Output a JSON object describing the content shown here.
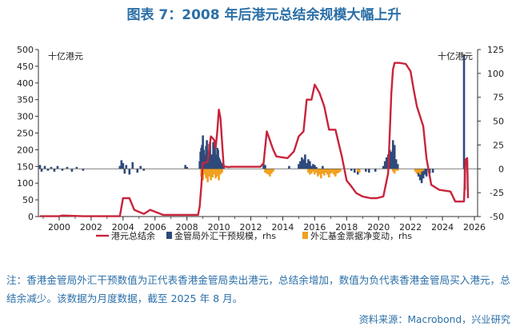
{
  "figure": {
    "title": "图表 7：2008 年后港元总结余规模大幅上升",
    "note": "注：香港金管局外汇干预数值为正代表香港金管局卖出港元，总结余增加，数值为负代表香港金管局买入港元，总结余减少。该数据为月度数据，截至 2025 年 8 月。",
    "source": "资料来源：Macrobond，兴业研究",
    "colors": {
      "title": "#2b6fa8",
      "balance": "#c8243c",
      "intervention": "#2e4a7a",
      "exchange_fund": "#f0a020",
      "axis": "#333333"
    }
  },
  "chart_data": {
    "type": "line",
    "left_axis": {
      "unit_label": "十亿港元",
      "ticks": [
        0,
        50,
        100,
        150,
        200,
        250,
        300,
        350,
        400,
        450,
        500
      ],
      "ylim": [
        0,
        500
      ]
    },
    "right_axis": {
      "unit_label": "十亿港元",
      "ticks": [
        -50,
        -25,
        0,
        25,
        50,
        75,
        100,
        125
      ],
      "ylim": [
        -50,
        125
      ]
    },
    "x_axis": {
      "ticks": [
        "2000",
        "2002",
        "2004",
        "2006",
        "2008",
        "2010",
        "2012",
        "2014",
        "2016",
        "2018",
        "2020",
        "2022",
        "2024",
        "2026"
      ],
      "xlim": [
        1998.7,
        2026.2
      ]
    },
    "grid": false,
    "legend": {
      "position": "bottom",
      "items": [
        "港元总结余",
        "金管局外汇干预规模，rhs",
        "外汇基金票据净变动，rhs"
      ]
    },
    "series": [
      {
        "name": "港元总结余",
        "axis": "left",
        "color": "#c8243c",
        "x": [
          1998.8,
          2000.0,
          2000.2,
          2001.5,
          2003.8,
          2004.0,
          2004.4,
          2004.7,
          2005.3,
          2005.7,
          2006.5,
          2008.0,
          2008.4,
          2008.7,
          2008.8,
          2008.9,
          2009.0,
          2009.1,
          2009.3,
          2009.5,
          2009.7,
          2009.8,
          2009.9,
          2010.0,
          2010.1,
          2010.3,
          2010.6,
          2010.8,
          2011.5,
          2012.6,
          2012.8,
          2013.0,
          2013.4,
          2013.6,
          2014.3,
          2014.7,
          2015.0,
          2015.3,
          2015.5,
          2015.8,
          2016.0,
          2016.3,
          2016.6,
          2016.9,
          2017.3,
          2017.7,
          2018.0,
          2018.3,
          2018.6,
          2019.0,
          2019.5,
          2019.9,
          2020.3,
          2020.6,
          2020.8,
          2020.9,
          2021.0,
          2021.3,
          2021.7,
          2022.0,
          2022.2,
          2022.4,
          2022.6,
          2022.8,
          2023.0,
          2023.3,
          2023.8,
          2024.5,
          2024.8,
          2025.0,
          2025.2,
          2025.35,
          2025.45,
          2025.55,
          2025.6
        ],
        "values": [
          1,
          1,
          3,
          1,
          1,
          55,
          55,
          20,
          8,
          20,
          5,
          5,
          5,
          5,
          30,
          90,
          160,
          160,
          165,
          240,
          230,
          205,
          255,
          320,
          295,
          150,
          148,
          149,
          149,
          149,
          160,
          255,
          200,
          180,
          175,
          195,
          240,
          255,
          350,
          350,
          395,
          370,
          330,
          260,
          260,
          180,
          108,
          90,
          70,
          60,
          55,
          55,
          60,
          130,
          370,
          440,
          460,
          460,
          457,
          435,
          380,
          330,
          300,
          270,
          175,
          95,
          80,
          75,
          45,
          45,
          45,
          45,
          170,
          175,
          55
        ]
      },
      {
        "name": "金管局外汇干预规模，rhs",
        "axis": "right",
        "type": "bar",
        "color": "#2e4a7a",
        "x": [
          1998.8,
          1998.9,
          1999.1,
          1999.3,
          1999.5,
          1999.7,
          1999.9,
          2000.2,
          2000.5,
          2000.8,
          2001.1,
          2001.5,
          2003.8,
          2003.9,
          2004.0,
          2004.1,
          2004.2,
          2004.4,
          2004.6,
          2004.9,
          2005.1,
          2005.3,
          2007.9,
          2008.0,
          2008.8,
          2008.85,
          2008.9,
          2008.95,
          2009.0,
          2009.05,
          2009.1,
          2009.15,
          2009.2,
          2009.25,
          2009.3,
          2009.35,
          2009.4,
          2009.45,
          2009.5,
          2009.55,
          2009.6,
          2009.65,
          2009.7,
          2009.75,
          2009.8,
          2009.85,
          2009.9,
          2009.95,
          2010.0,
          2010.05,
          2010.1,
          2010.2,
          2010.3,
          2012.8,
          2012.9,
          2014.4,
          2015.0,
          2015.1,
          2015.2,
          2015.3,
          2015.4,
          2015.5,
          2015.6,
          2015.7,
          2015.8,
          2015.9,
          2016.0,
          2016.1,
          2016.5,
          2018.3,
          2018.5,
          2018.7,
          2019.2,
          2019.4,
          2019.8,
          2020.3,
          2020.4,
          2020.5,
          2020.6,
          2020.7,
          2020.8,
          2020.9,
          2021.0,
          2021.1,
          2021.2,
          2022.4,
          2022.5,
          2022.6,
          2022.7,
          2022.8,
          2022.9,
          2023.0,
          2023.2,
          2023.4,
          2025.35,
          2025.4
        ],
        "values": [
          4,
          -3,
          3,
          -2,
          2,
          -3,
          3,
          -2,
          2,
          -3,
          2,
          -2,
          3,
          9,
          6,
          -5,
          4,
          -6,
          7,
          -4,
          3,
          -2,
          4,
          2,
          8,
          18,
          22,
          25,
          35,
          20,
          15,
          12,
          24,
          30,
          14,
          18,
          26,
          28,
          10,
          15,
          12,
          28,
          18,
          30,
          15,
          10,
          22,
          20,
          12,
          10,
          8,
          6,
          4,
          5,
          4,
          3,
          5,
          8,
          12,
          10,
          15,
          6,
          10,
          8,
          3,
          5,
          4,
          2,
          3,
          -2,
          -4,
          -6,
          -3,
          -4,
          -3,
          3,
          8,
          12,
          15,
          20,
          18,
          30,
          25,
          10,
          5,
          -5,
          -8,
          -12,
          -15,
          -10,
          -6,
          -8,
          -5,
          -4,
          120,
          -22
        ]
      },
      {
        "name": "外汇基金票据净变动，rhs",
        "axis": "right",
        "type": "bar",
        "color": "#f0a020",
        "x": [
          2008.9,
          2009.0,
          2009.1,
          2009.2,
          2009.3,
          2009.4,
          2009.5,
          2009.6,
          2009.7,
          2009.8,
          2009.9,
          2010.0,
          2010.1,
          2010.2,
          2012.9,
          2013.0,
          2013.1,
          2013.2,
          2013.3,
          2013.4,
          2015.6,
          2015.7,
          2015.8,
          2015.9,
          2016.0,
          2016.1,
          2016.2,
          2016.3,
          2016.4,
          2016.5,
          2016.6,
          2016.7,
          2016.8,
          2016.9,
          2017.0,
          2017.1,
          2017.2,
          2017.3,
          2017.4,
          2017.5,
          2017.6,
          2018.7,
          2018.8,
          2020.9,
          2021.0,
          2021.1,
          2021.2,
          2022.3,
          2022.4,
          2022.5,
          2022.6,
          2022.7,
          2022.8
        ],
        "values": [
          -8,
          -12,
          -6,
          -10,
          -14,
          -8,
          -12,
          -9,
          -6,
          -10,
          -8,
          -12,
          -6,
          -4,
          -4,
          -5,
          -6,
          -8,
          -5,
          -3,
          -4,
          -6,
          -5,
          -3,
          -6,
          -4,
          -8,
          -6,
          -10,
          -5,
          -7,
          -4,
          -6,
          -9,
          -5,
          -4,
          -6,
          -8,
          -5,
          -4,
          -3,
          -3,
          -4,
          -3,
          -5,
          -2,
          -2,
          -3,
          -5,
          -4,
          -6,
          -3,
          -2
        ]
      }
    ]
  }
}
